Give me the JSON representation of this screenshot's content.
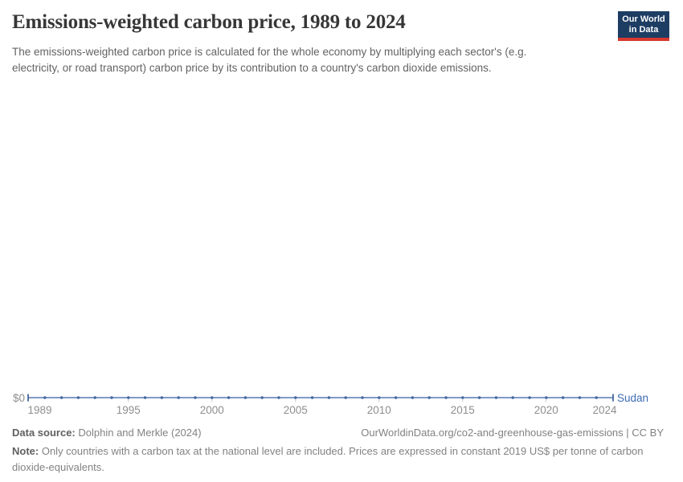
{
  "header": {
    "title": "Emissions-weighted carbon price, 1989 to 2024",
    "subtitle": "The emissions-weighted carbon price is calculated for the whole economy by multiplying each sector's (e.g. electricity, or road transport) carbon price by its contribution to a country's carbon dioxide emissions.",
    "logo": {
      "line1": "Our World",
      "line2": "in Data"
    }
  },
  "chart_data": {
    "type": "line",
    "title": "Emissions-weighted carbon price, 1989 to 2024",
    "entity": "Sudan",
    "x": [
      1989,
      1990,
      1991,
      1992,
      1993,
      1994,
      1995,
      1996,
      1997,
      1998,
      1999,
      2000,
      2001,
      2002,
      2003,
      2004,
      2005,
      2006,
      2007,
      2008,
      2009,
      2010,
      2011,
      2012,
      2013,
      2014,
      2015,
      2016,
      2017,
      2018,
      2019,
      2020,
      2021,
      2022,
      2023,
      2024
    ],
    "series": [
      {
        "name": "Sudan",
        "values": [
          0,
          0,
          0,
          0,
          0,
          0,
          0,
          0,
          0,
          0,
          0,
          0,
          0,
          0,
          0,
          0,
          0,
          0,
          0,
          0,
          0,
          0,
          0,
          0,
          0,
          0,
          0,
          0,
          0,
          0,
          0,
          0,
          0,
          0,
          0,
          0
        ]
      }
    ],
    "xlim": [
      1989,
      2024
    ],
    "ylim": [
      0,
      0
    ],
    "x_ticks": [
      1989,
      1995,
      2000,
      2005,
      2010,
      2015,
      2020,
      2024
    ],
    "y_tick_label": "$0",
    "grid": false,
    "legend_position": "end-of-line",
    "line_color": "#5878b4",
    "marker_color": "#41669e",
    "subtick_color": "#c9c9c9",
    "axis_text_color": "#8e8e8e",
    "entity_label_color": "#3d6bb5"
  },
  "footer": {
    "data_source_label": "Data source:",
    "data_source": "Dolphin and Merkle (2024)",
    "url_credit": "OurWorldinData.org/co2-and-greenhouse-gas-emissions | CC BY",
    "note_label": "Note:",
    "note": "Only countries with a carbon tax at the national level are included. Prices are expressed in constant 2019 US$ per tonne of carbon dioxide-equivalents."
  }
}
